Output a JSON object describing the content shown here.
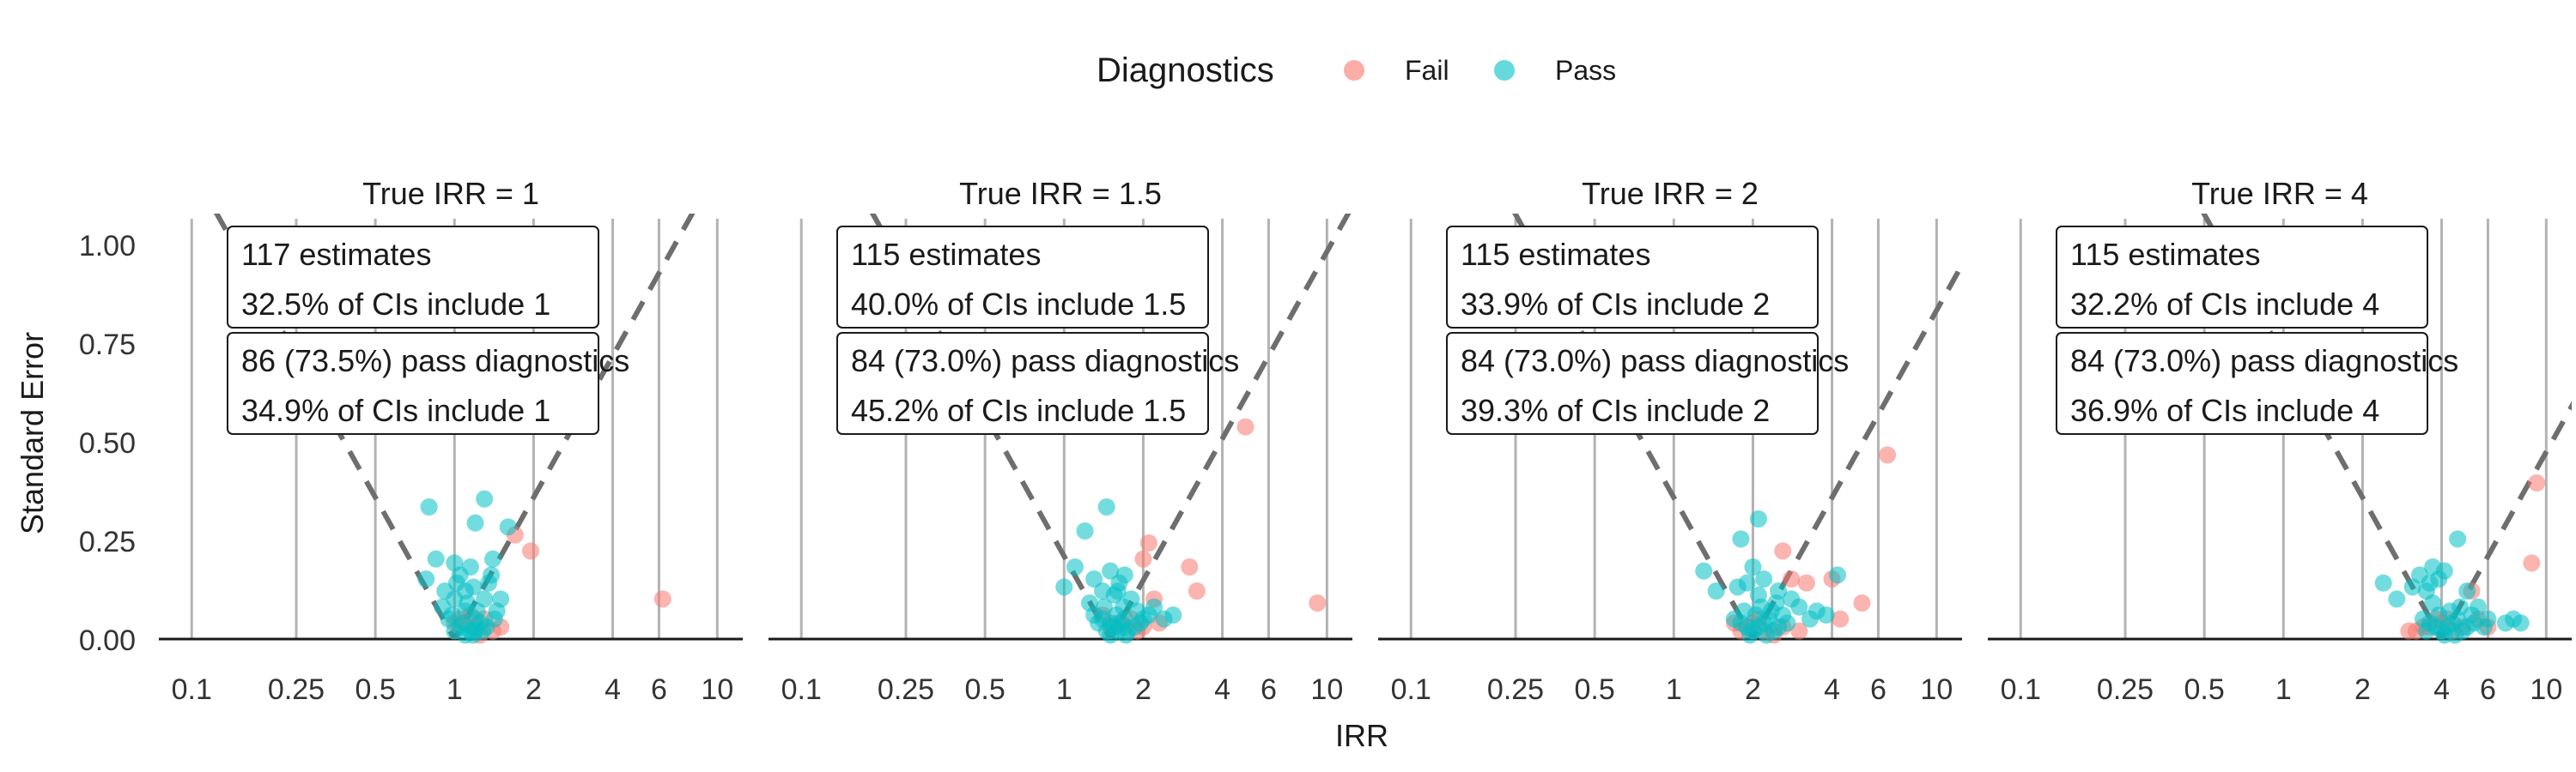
{
  "chart_data": {
    "type": "scatter",
    "title": "",
    "xlabel": "IRR",
    "ylabel": "Standard Error",
    "x_scale": "log",
    "x_ticks": [
      0.1,
      0.25,
      0.5,
      1,
      2,
      4,
      6,
      10
    ],
    "x_tick_labels": [
      "0.1",
      "0.25",
      "0.5",
      "1",
      "2",
      "4",
      "6",
      "10"
    ],
    "ylim": [
      0,
      1.05
    ],
    "y_ticks": [
      0,
      0.25,
      0.5,
      0.75,
      1.0
    ],
    "y_tick_labels": [
      "0.00",
      "0.25",
      "0.50",
      "0.75",
      "1.00"
    ],
    "grid": "vertical lines at x ticks",
    "legend": {
      "title": "Diagnostics",
      "placement": "top-center",
      "entries": [
        {
          "name": "Fail",
          "color": "#F8766D"
        },
        {
          "name": "Pass",
          "color": "#00BFC4"
        }
      ]
    },
    "reference_lines": "dashed funnel lines at true IRR ± 1.96 × SE",
    "panels": [
      {
        "title": "True IRR = 1",
        "true_irr": 1,
        "annotation_all": [
          "117 estimates",
          "32.5% of CIs include 1"
        ],
        "annotation_pass": [
          "86 (73.5%) pass diagnostics",
          "34.9% of CIs include 1"
        ],
        "pass_points": [
          [
            0.8,
            0.33
          ],
          [
            0.85,
            0.2
          ],
          [
            0.78,
            0.15
          ],
          [
            0.9,
            0.08
          ],
          [
            1.0,
            0.19
          ],
          [
            1.05,
            0.16
          ],
          [
            1.1,
            0.12
          ],
          [
            1.15,
            0.18
          ],
          [
            1.2,
            0.29
          ],
          [
            1.3,
            0.35
          ],
          [
            1.4,
            0.2
          ],
          [
            1.5,
            0.1
          ],
          [
            1.6,
            0.28
          ],
          [
            1.0,
            0.1
          ],
          [
            1.1,
            0.07
          ],
          [
            1.2,
            0.05
          ],
          [
            0.95,
            0.05
          ],
          [
            1.05,
            0.03
          ],
          [
            1.15,
            0.02
          ],
          [
            1.25,
            0.04
          ],
          [
            1.3,
            0.1
          ],
          [
            1.35,
            0.14
          ],
          [
            1.45,
            0.07
          ],
          [
            1.0,
            0.02
          ],
          [
            1.1,
            0.01
          ],
          [
            1.2,
            0.02
          ],
          [
            0.92,
            0.12
          ],
          [
            1.02,
            0.14
          ],
          [
            1.12,
            0.09
          ],
          [
            1.22,
            0.07
          ],
          [
            1.32,
            0.03
          ],
          [
            1.42,
            0.05
          ],
          [
            0.98,
            0.06
          ],
          [
            1.08,
            0.04
          ],
          [
            1.18,
            0.01
          ],
          [
            1.28,
            0.02
          ],
          [
            1.38,
            0.16
          ],
          [
            1.18,
            0.13
          ]
        ],
        "fail_points": [
          [
            1.7,
            0.26
          ],
          [
            1.95,
            0.22
          ],
          [
            6.2,
            0.1
          ],
          [
            1.1,
            0.04
          ],
          [
            1.2,
            0.03
          ],
          [
            1.3,
            0.05
          ],
          [
            1.4,
            0.02
          ],
          [
            1.0,
            0.04
          ],
          [
            1.15,
            0.06
          ],
          [
            1.25,
            0.01
          ],
          [
            1.5,
            0.03
          ],
          [
            1.05,
            0.05
          ]
        ]
      },
      {
        "title": "True IRR = 1.5",
        "true_irr": 1.5,
        "annotation_all": [
          "115 estimates",
          "40.0% of CIs include 1.5"
        ],
        "annotation_pass": [
          "84 (73.0%) pass diagnostics",
          "45.2% of CIs include 1.5"
        ],
        "pass_points": [
          [
            1.2,
            0.27
          ],
          [
            1.45,
            0.33
          ],
          [
            1.1,
            0.18
          ],
          [
            1.0,
            0.13
          ],
          [
            1.3,
            0.15
          ],
          [
            1.5,
            0.17
          ],
          [
            1.6,
            0.12
          ],
          [
            1.7,
            0.16
          ],
          [
            1.8,
            0.1
          ],
          [
            1.9,
            0.07
          ],
          [
            2.1,
            0.06
          ],
          [
            2.4,
            0.05
          ],
          [
            2.6,
            0.06
          ],
          [
            1.3,
            0.06
          ],
          [
            1.4,
            0.05
          ],
          [
            1.5,
            0.04
          ],
          [
            1.55,
            0.03
          ],
          [
            1.6,
            0.02
          ],
          [
            1.65,
            0.04
          ],
          [
            1.7,
            0.05
          ],
          [
            1.75,
            0.02
          ],
          [
            1.5,
            0.01
          ],
          [
            1.45,
            0.02
          ],
          [
            1.35,
            0.04
          ],
          [
            1.85,
            0.03
          ],
          [
            1.95,
            0.04
          ],
          [
            2.0,
            0.05
          ],
          [
            1.4,
            0.12
          ],
          [
            1.55,
            0.11
          ],
          [
            1.62,
            0.14
          ],
          [
            1.25,
            0.09
          ],
          [
            1.68,
            0.08
          ],
          [
            2.2,
            0.08
          ],
          [
            1.58,
            0.06
          ],
          [
            1.72,
            0.01
          ],
          [
            1.42,
            0.08
          ]
        ],
        "fail_points": [
          [
            4.9,
            0.53
          ],
          [
            2.1,
            0.24
          ],
          [
            2.0,
            0.2
          ],
          [
            3.0,
            0.18
          ],
          [
            3.2,
            0.12
          ],
          [
            9.2,
            0.09
          ],
          [
            2.2,
            0.1
          ],
          [
            1.8,
            0.05
          ],
          [
            1.6,
            0.04
          ],
          [
            1.7,
            0.03
          ],
          [
            1.9,
            0.02
          ],
          [
            2.0,
            0.03
          ],
          [
            2.3,
            0.04
          ],
          [
            1.5,
            0.03
          ],
          [
            1.4,
            0.06
          ]
        ]
      },
      {
        "title": "True IRR = 2",
        "true_irr": 2,
        "annotation_all": [
          "115 estimates",
          "33.9% of CIs include 2"
        ],
        "annotation_pass": [
          "84 (73.0%) pass diagnostics",
          "39.3% of CIs include 2"
        ],
        "pass_points": [
          [
            2.1,
            0.3
          ],
          [
            1.8,
            0.25
          ],
          [
            1.3,
            0.17
          ],
          [
            1.45,
            0.12
          ],
          [
            1.75,
            0.13
          ],
          [
            1.9,
            0.14
          ],
          [
            2.0,
            0.18
          ],
          [
            2.2,
            0.15
          ],
          [
            2.5,
            0.12
          ],
          [
            2.8,
            0.1
          ],
          [
            3.0,
            0.08
          ],
          [
            3.5,
            0.07
          ],
          [
            3.8,
            0.06
          ],
          [
            4.2,
            0.16
          ],
          [
            1.7,
            0.05
          ],
          [
            1.8,
            0.04
          ],
          [
            1.9,
            0.03
          ],
          [
            2.0,
            0.02
          ],
          [
            2.1,
            0.03
          ],
          [
            2.2,
            0.04
          ],
          [
            2.3,
            0.05
          ],
          [
            2.4,
            0.02
          ],
          [
            2.5,
            0.03
          ],
          [
            2.6,
            0.06
          ],
          [
            2.7,
            0.04
          ],
          [
            1.85,
            0.07
          ],
          [
            2.05,
            0.06
          ],
          [
            2.15,
            0.08
          ],
          [
            2.35,
            0.07
          ],
          [
            1.95,
            0.01
          ],
          [
            2.25,
            0.01
          ],
          [
            2.45,
            0.09
          ],
          [
            3.3,
            0.05
          ],
          [
            2.1,
            0.11
          ]
        ],
        "fail_points": [
          [
            6.5,
            0.46
          ],
          [
            2.6,
            0.22
          ],
          [
            2.8,
            0.15
          ],
          [
            4.0,
            0.15
          ],
          [
            3.2,
            0.14
          ],
          [
            5.2,
            0.09
          ],
          [
            4.3,
            0.05
          ],
          [
            1.7,
            0.04
          ],
          [
            1.8,
            0.02
          ],
          [
            1.9,
            0.03
          ],
          [
            2.0,
            0.04
          ],
          [
            2.2,
            0.02
          ],
          [
            2.4,
            0.01
          ],
          [
            2.6,
            0.03
          ],
          [
            3.0,
            0.02
          ],
          [
            2.1,
            0.05
          ]
        ]
      },
      {
        "title": "True IRR = 4",
        "true_irr": 4,
        "annotation_all": [
          "115 estimates",
          "32.2% of CIs include 4"
        ],
        "annotation_pass": [
          "84 (73.0%) pass diagnostics",
          "36.9% of CIs include 4"
        ],
        "pass_points": [
          [
            2.4,
            0.14
          ],
          [
            2.7,
            0.1
          ],
          [
            3.1,
            0.13
          ],
          [
            3.3,
            0.16
          ],
          [
            3.5,
            0.12
          ],
          [
            3.6,
            0.14
          ],
          [
            3.7,
            0.18
          ],
          [
            3.9,
            0.15
          ],
          [
            4.1,
            0.17
          ],
          [
            4.6,
            0.25
          ],
          [
            5.0,
            0.12
          ],
          [
            5.5,
            0.08
          ],
          [
            6.0,
            0.05
          ],
          [
            7.0,
            0.04
          ],
          [
            7.5,
            0.05
          ],
          [
            8.0,
            0.04
          ],
          [
            3.4,
            0.05
          ],
          [
            3.6,
            0.04
          ],
          [
            3.8,
            0.03
          ],
          [
            4.0,
            0.02
          ],
          [
            4.2,
            0.03
          ],
          [
            4.4,
            0.04
          ],
          [
            4.6,
            0.05
          ],
          [
            4.8,
            0.02
          ],
          [
            5.0,
            0.03
          ],
          [
            5.3,
            0.04
          ],
          [
            5.8,
            0.03
          ],
          [
            3.9,
            0.06
          ],
          [
            4.3,
            0.07
          ],
          [
            4.7,
            0.08
          ],
          [
            3.5,
            0.02
          ],
          [
            4.1,
            0.01
          ],
          [
            4.5,
            0.01
          ],
          [
            5.2,
            0.06
          ],
          [
            3.7,
            0.09
          ]
        ],
        "fail_points": [
          [
            9.2,
            0.39
          ],
          [
            8.8,
            0.19
          ],
          [
            5.2,
            0.12
          ],
          [
            3.4,
            0.03
          ],
          [
            3.2,
            0.02
          ],
          [
            3.6,
            0.03
          ],
          [
            4.0,
            0.04
          ],
          [
            4.4,
            0.02
          ],
          [
            4.8,
            0.03
          ],
          [
            5.5,
            0.05
          ],
          [
            6.0,
            0.03
          ],
          [
            3.8,
            0.05
          ],
          [
            3.0,
            0.02
          ],
          [
            4.2,
            0.05
          ]
        ]
      }
    ]
  }
}
